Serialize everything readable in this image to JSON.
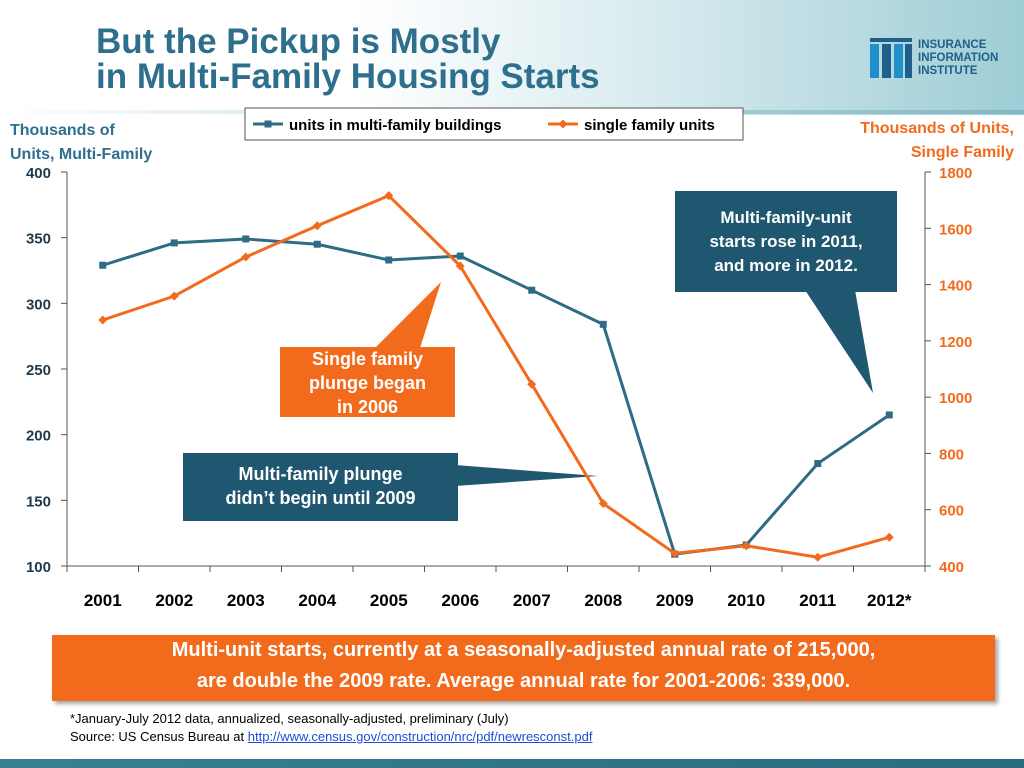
{
  "title": {
    "line1": "But the Pickup is Mostly",
    "line2": "in Multi-Family Housing Starts"
  },
  "logo": {
    "line1": "INSURANCE",
    "line2": "INFORMATION",
    "line3": "INSTITUTE"
  },
  "axis_labels": {
    "left_line1": "Thousands of",
    "left_line2": "Units, Multi-Family",
    "right_line1": "Thousands of Units,",
    "right_line2": "Single Family"
  },
  "colors": {
    "multi": "#2e6b85",
    "single": "#f26b1d",
    "dark_box": "#1f5670",
    "orange_box": "#f26b1d"
  },
  "chart_data": {
    "type": "line",
    "x": [
      "2001",
      "2002",
      "2003",
      "2004",
      "2005",
      "2006",
      "2007",
      "2008",
      "2009",
      "2010",
      "2011",
      "2012*"
    ],
    "series": [
      {
        "name": "units in multi-family buildings",
        "axis": "left",
        "values": [
          329,
          346,
          349,
          345,
          333,
          336,
          310,
          284,
          109,
          116,
          178,
          215
        ]
      },
      {
        "name": "single family units",
        "axis": "right",
        "values": [
          1274,
          1359,
          1498,
          1609,
          1716,
          1466,
          1046,
          622,
          445,
          472,
          431,
          502
        ]
      }
    ],
    "y_left": {
      "min": 100,
      "max": 400,
      "ticks": [
        100,
        150,
        200,
        250,
        300,
        350,
        400
      ]
    },
    "y_right": {
      "min": 400,
      "max": 1800,
      "ticks": [
        400,
        600,
        800,
        1000,
        1200,
        1400,
        1600,
        1800
      ]
    },
    "legend_position": "top-center"
  },
  "annotations": {
    "multi_rise": [
      "Multi-family-unit",
      "starts rose in 2011,",
      "and more in 2012."
    ],
    "single_plunge": [
      "Single family",
      "plunge began",
      "in 2006"
    ],
    "multi_plunge": [
      "Multi-family plunge",
      "didn’t begin until 2009"
    ]
  },
  "summary": {
    "line1": "Multi-unit starts, currently at a seasonally-adjusted annual rate of 215,000,",
    "line2": "are double the 2009 rate. Average annual rate for 2001-2006: 339,000."
  },
  "footnote": {
    "note": "*January-July 2012 data, annualized, seasonally-adjusted, preliminary (July)",
    "source_prefix": "Source: US Census Bureau at ",
    "source_url": "http://www.census.gov/construction/nrc/pdf/newresconst.pdf"
  }
}
